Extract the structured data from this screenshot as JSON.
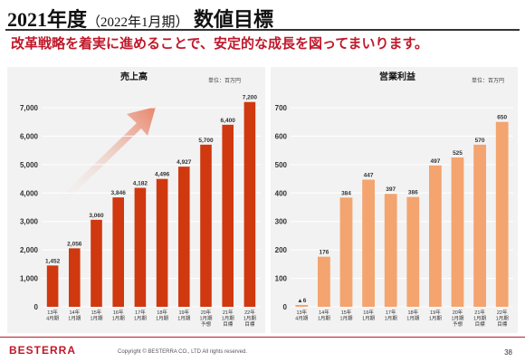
{
  "header": {
    "title_main": "2021年度",
    "title_paren": "（2022年1月期）",
    "title_tail": "数値目標",
    "subtitle": "改革戦略を着実に進めることで、安定的な成長を図ってまいります。"
  },
  "footer": {
    "logo": "BESTERRA",
    "copyright": "Copyright © BESTERRA CO., LTD All rights reserved.",
    "page": "38"
  },
  "colors": {
    "bar_sales": "#d0380f",
    "bar_profit": "#f4a46f",
    "accent": "#c0182a",
    "panel": "#f2f2f2"
  },
  "chart_data": [
    {
      "type": "bar",
      "title": "売上高",
      "unit": "単位：百万円",
      "categories": [
        "13年\n4月期",
        "14年\n1月期",
        "15年\n1月期",
        "16年\n1月期",
        "17年\n1月期",
        "18年\n1月期",
        "19年\n1月期",
        "20年\n1月期\n予想",
        "21年\n1月期\n目標",
        "22年\n1月期\n目標"
      ],
      "values": [
        1452,
        2056,
        3060,
        3846,
        4182,
        4496,
        4927,
        5700,
        6400,
        7200
      ],
      "value_labels": [
        "1,452",
        "2,056",
        "3,060",
        "3,846",
        "4,182",
        "4,496",
        "4,927",
        "5,700",
        "6,400",
        "7,200"
      ],
      "ylim": [
        0,
        7000
      ],
      "yticks": [
        0,
        1000,
        2000,
        3000,
        4000,
        5000,
        6000,
        7000
      ],
      "ytick_labels": [
        "0",
        "1,000",
        "2,000",
        "3,000",
        "4,000",
        "5,000",
        "6,000",
        "7,000"
      ],
      "grid": true
    },
    {
      "type": "bar",
      "title": "営業利益",
      "unit": "単位：百万円",
      "categories": [
        "13年\n4月期",
        "14年\n1月期",
        "15年\n1月期",
        "16年\n1月期",
        "17年\n1月期",
        "18年\n1月期",
        "19年\n1月期",
        "20年\n1月期\n予想",
        "21年\n1月期\n目標",
        "22年\n1月期\n目標"
      ],
      "values": [
        -6,
        176,
        384,
        447,
        397,
        386,
        497,
        525,
        570,
        650
      ],
      "value_labels": [
        "▲6",
        "176",
        "384",
        "447",
        "397",
        "386",
        "497",
        "525",
        "570",
        "650"
      ],
      "ylim": [
        0,
        700
      ],
      "yticks": [
        0,
        100,
        200,
        300,
        400,
        500,
        600,
        700
      ],
      "ytick_labels": [
        "0",
        "100",
        "200",
        "300",
        "400",
        "500",
        "600",
        "700"
      ],
      "grid": true
    }
  ]
}
